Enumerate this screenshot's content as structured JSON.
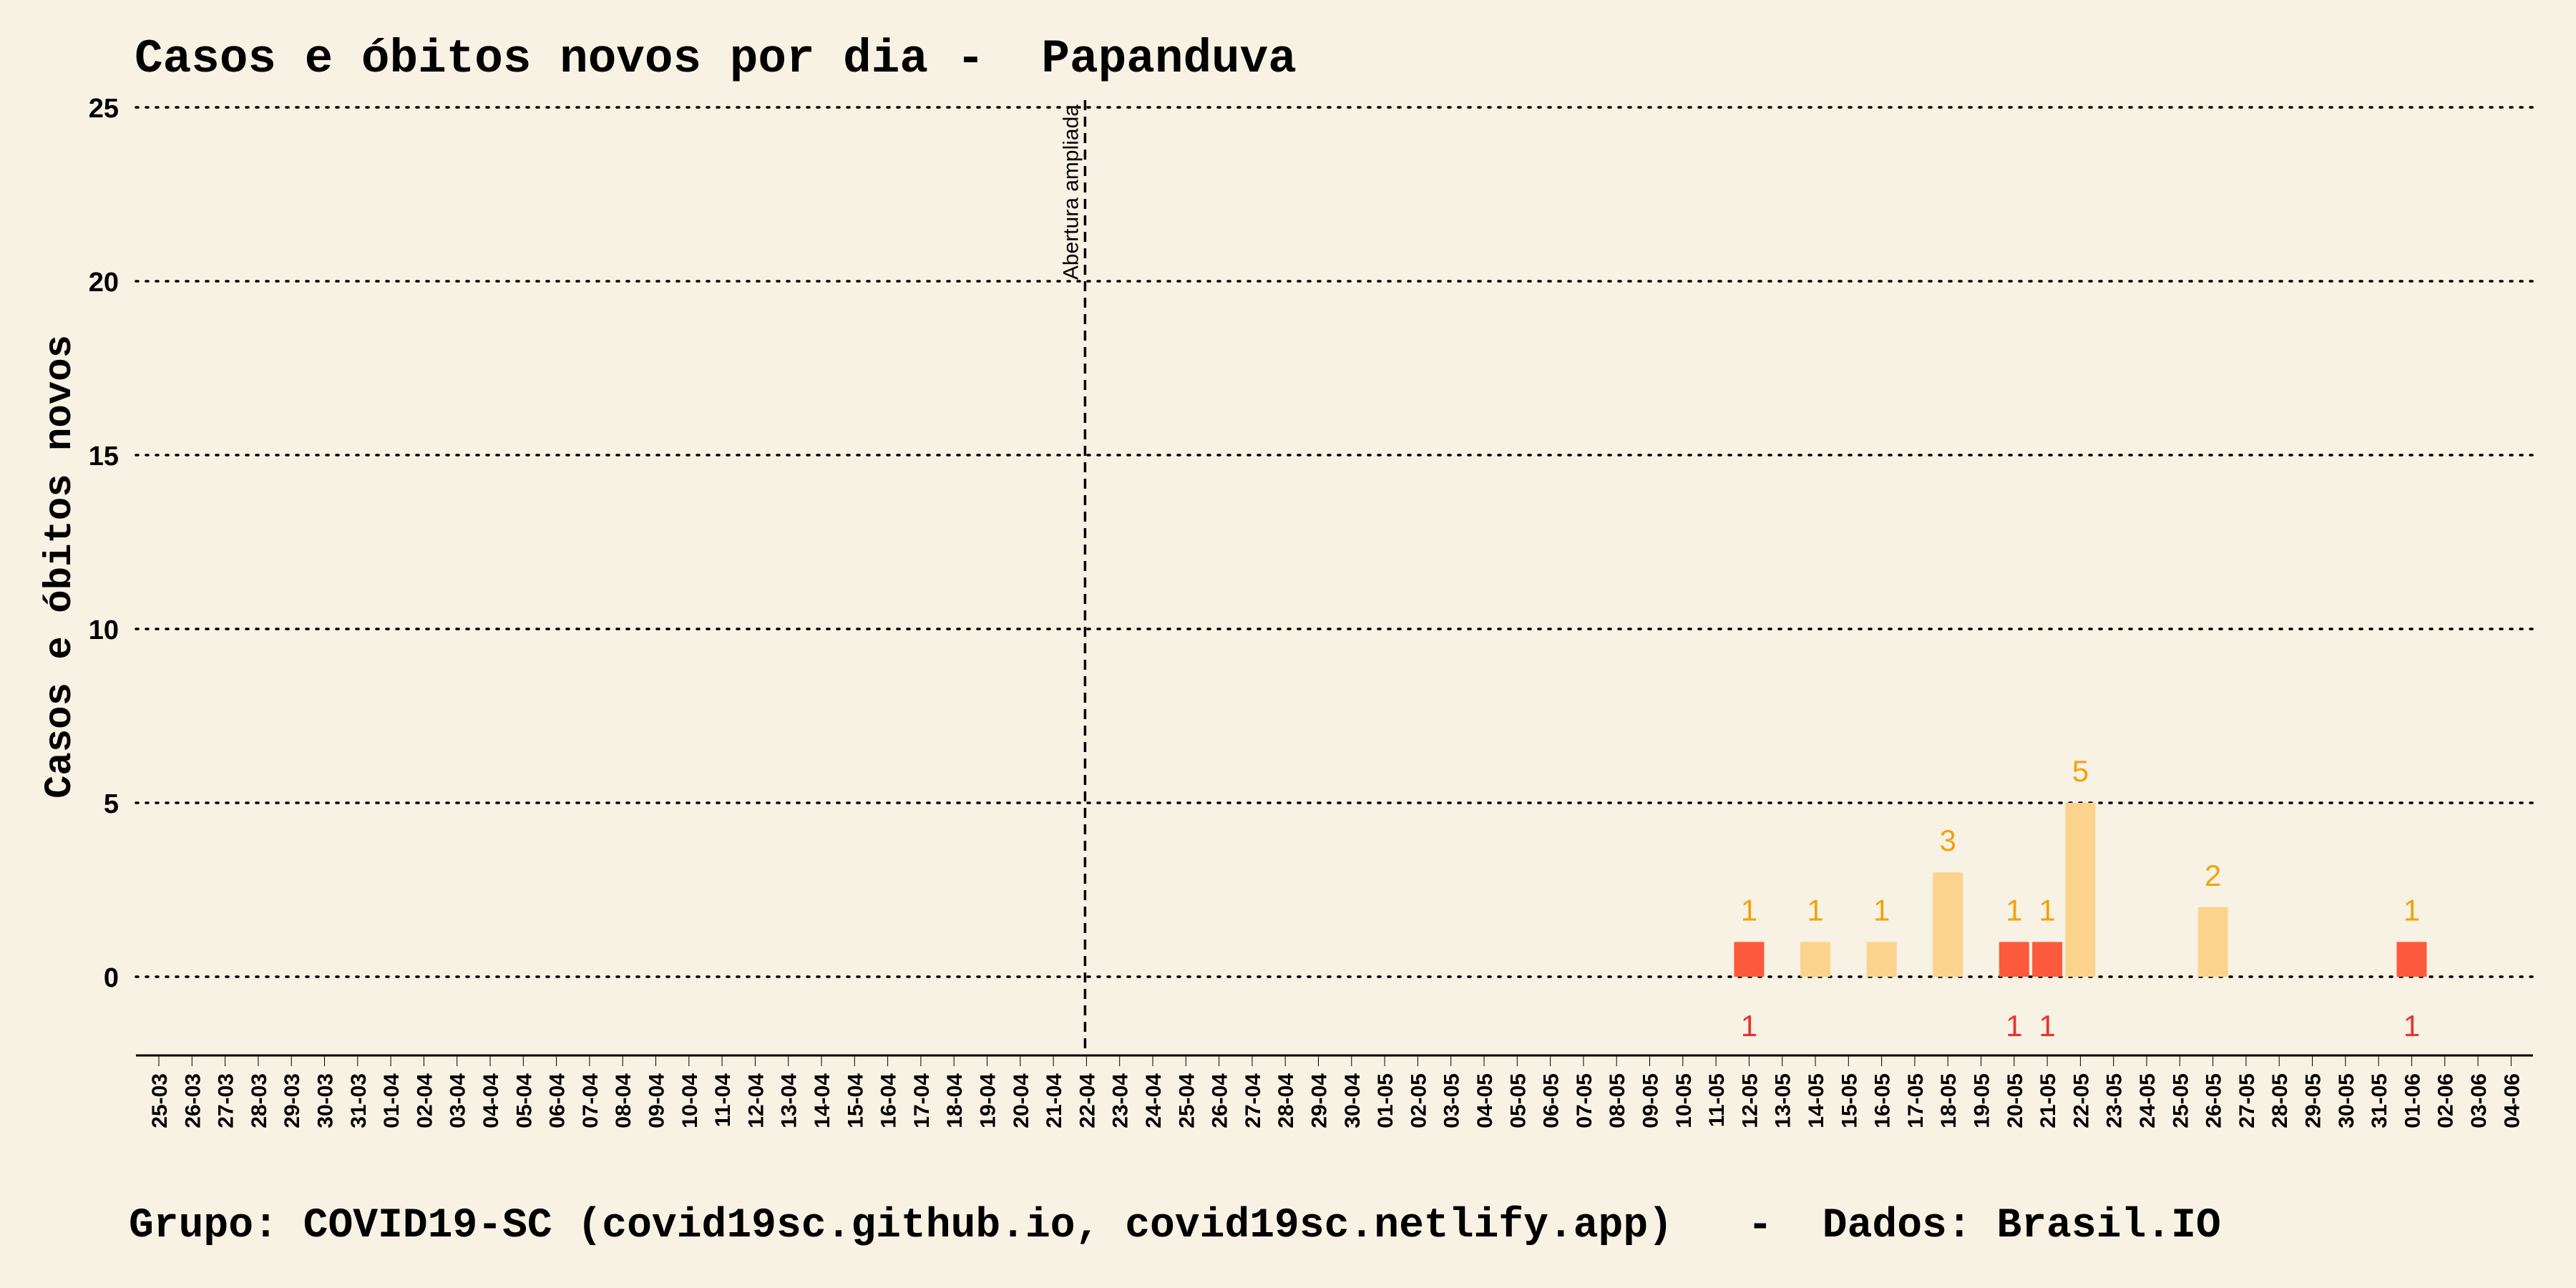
{
  "chart_data": {
    "type": "bar",
    "title": "Casos e óbitos novos por dia -  Papanduva",
    "ylabel": "Casos e óbitos novos",
    "xlabel": "",
    "caption": "Grupo: COVID19-SC (covid19sc.github.io, covid19sc.netlify.app)   -  Dados: Brasil.IO",
    "ylim": [
      -2.3,
      25
    ],
    "yticks": [
      0,
      5,
      10,
      15,
      20,
      25
    ],
    "grid": true,
    "categories": [
      "25-03",
      "26-03",
      "27-03",
      "28-03",
      "29-03",
      "30-03",
      "31-03",
      "01-04",
      "02-04",
      "03-04",
      "04-04",
      "05-04",
      "06-04",
      "07-04",
      "08-04",
      "09-04",
      "10-04",
      "11-04",
      "12-04",
      "13-04",
      "14-04",
      "15-04",
      "16-04",
      "17-04",
      "18-04",
      "19-04",
      "20-04",
      "21-04",
      "22-04",
      "23-04",
      "24-04",
      "25-04",
      "26-04",
      "27-04",
      "28-04",
      "29-04",
      "30-04",
      "01-05",
      "02-05",
      "03-05",
      "04-05",
      "05-05",
      "06-05",
      "07-05",
      "08-05",
      "09-05",
      "10-05",
      "11-05",
      "12-05",
      "13-05",
      "14-05",
      "15-05",
      "16-05",
      "17-05",
      "18-05",
      "19-05",
      "20-05",
      "21-05",
      "22-05",
      "23-05",
      "24-05",
      "25-05",
      "26-05",
      "27-05",
      "28-05",
      "29-05",
      "30-05",
      "31-05",
      "01-06",
      "02-06",
      "03-06",
      "04-06"
    ],
    "series": [
      {
        "name": "",
        "color": "#fcd38d",
        "label_color": "#f0a30a",
        "values": [
          0,
          0,
          0,
          0,
          0,
          0,
          0,
          0,
          0,
          0,
          0,
          0,
          0,
          0,
          0,
          0,
          0,
          0,
          0,
          0,
          0,
          0,
          0,
          0,
          0,
          0,
          0,
          0,
          0,
          0,
          0,
          0,
          0,
          0,
          0,
          0,
          0,
          0,
          0,
          0,
          0,
          0,
          0,
          0,
          0,
          0,
          0,
          0,
          1,
          0,
          1,
          0,
          1,
          0,
          3,
          0,
          1,
          1,
          5,
          0,
          0,
          0,
          2,
          0,
          0,
          0,
          0,
          0,
          1,
          0,
          0,
          0
        ]
      },
      {
        "name": "",
        "color": "#fc5a3c",
        "label_color": "#e8322e",
        "values": [
          0,
          0,
          0,
          0,
          0,
          0,
          0,
          0,
          0,
          0,
          0,
          0,
          0,
          0,
          0,
          0,
          0,
          0,
          0,
          0,
          0,
          0,
          0,
          0,
          0,
          0,
          0,
          0,
          0,
          0,
          0,
          0,
          0,
          0,
          0,
          0,
          0,
          0,
          0,
          0,
          0,
          0,
          0,
          0,
          0,
          0,
          0,
          0,
          1,
          0,
          0,
          0,
          0,
          0,
          0,
          0,
          1,
          1,
          0,
          0,
          0,
          0,
          0,
          0,
          0,
          0,
          0,
          0,
          1,
          0,
          0,
          0
        ]
      }
    ],
    "annotations": [
      {
        "type": "vline",
        "x": "22-04",
        "text": "Abertura ampliada",
        "style": "dashed"
      }
    ]
  }
}
